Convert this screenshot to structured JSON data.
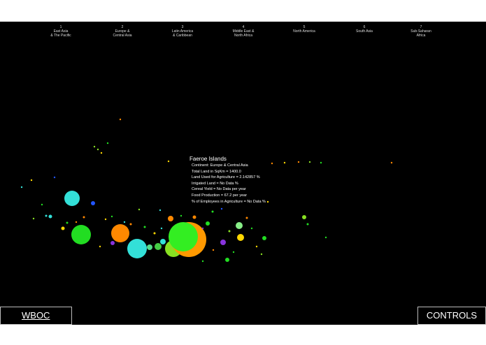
{
  "regions": [
    {
      "num": "1",
      "name": "East Asia\n& The Pacific"
    },
    {
      "num": "2",
      "name": "Europe &\nCentral Asia"
    },
    {
      "num": "3",
      "name": "Latin America\n& Caribbean"
    },
    {
      "num": "4",
      "name": "Middle East &\nNorth Africa"
    },
    {
      "num": "5",
      "name": "North America"
    },
    {
      "num": "6",
      "name": "South Asia"
    },
    {
      "num": "7",
      "name": "Sub-Saharan\nAfrica"
    }
  ],
  "tooltip": {
    "title": "Faeroe Islands",
    "lines": [
      "Continent: Europe & Central Asia",
      "Total Land in SqKm = 1400.0",
      "Land Used for Agriculture = 2.142857 %",
      "Irrigated Land = No Data  %",
      "Cereal Yield = No Data  per year",
      "Food Production = 67.2 per year",
      "% of Employees in Agriculture = No Data  %"
    ]
  },
  "buttons": {
    "wboc": "WBOC",
    "controls": "CONTROLS"
  },
  "colors": {
    "background": "#000000",
    "green": "#22dd22",
    "orange": "#ff8800",
    "cyan": "#33e0d8",
    "lime": "#88e022",
    "purple": "#8833dd",
    "blue": "#2255ff",
    "yellow": "#ffd700"
  }
}
